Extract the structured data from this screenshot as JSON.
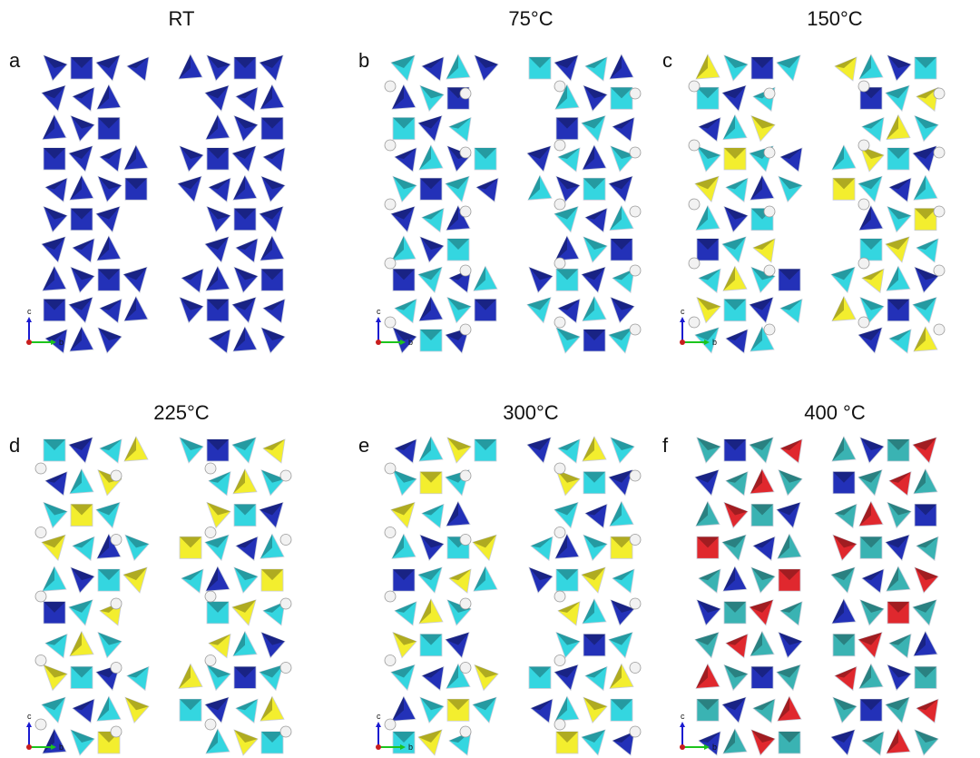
{
  "colors": {
    "blue": "#2331b8",
    "cyan": "#34d6e0",
    "yellow": "#f3ee2e",
    "red": "#e0282e",
    "teal": "#3ab3b3",
    "white": "#eeeeee"
  },
  "panels": [
    {
      "id": "a",
      "letter": "a",
      "title": "RT",
      "palette": [
        "blue",
        "blue",
        "blue",
        "blue"
      ],
      "spheres": false,
      "axes": {
        "up": "c",
        "right": "b"
      }
    },
    {
      "id": "b",
      "letter": "b",
      "title": "75°C",
      "palette": [
        "blue",
        "cyan",
        "blue",
        "cyan"
      ],
      "spheres": true,
      "axes": {
        "up": "c",
        "right": "b"
      }
    },
    {
      "id": "c",
      "letter": "c",
      "title": "150°C",
      "palette": [
        "blue",
        "cyan",
        "yellow",
        "cyan"
      ],
      "spheres": true,
      "axes": {
        "up": "c",
        "right": "b"
      }
    },
    {
      "id": "d",
      "letter": "d",
      "title": "225°C",
      "palette": [
        "blue",
        "cyan",
        "yellow",
        "cyan"
      ],
      "spheres": true,
      "axes": {
        "up": "c",
        "right": "b"
      }
    },
    {
      "id": "e",
      "letter": "e",
      "title": "300°C",
      "palette": [
        "blue",
        "cyan",
        "yellow",
        "cyan"
      ],
      "spheres": true,
      "axes": {
        "up": "c",
        "right": "b"
      }
    },
    {
      "id": "f",
      "letter": "f",
      "title": "400 °C",
      "palette": [
        "red",
        "teal",
        "blue",
        "teal"
      ],
      "spheres": false,
      "axes": {
        "up": "c",
        "right": "b"
      }
    }
  ]
}
